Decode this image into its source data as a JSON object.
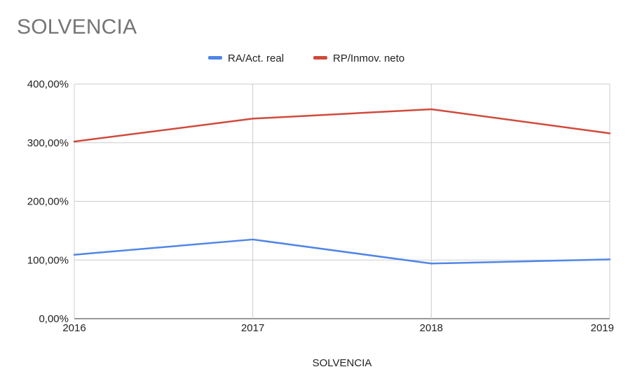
{
  "chart_data": {
    "type": "line",
    "title": "SOLVENCIA",
    "xlabel": "SOLVENCIA",
    "ylabel": "",
    "categories": [
      "2016",
      "2017",
      "2018",
      "2019"
    ],
    "y_ticks": [
      "0,00%",
      "100,00%",
      "200,00%",
      "300,00%",
      "400,00%"
    ],
    "ylim": [
      0,
      400
    ],
    "grid": true,
    "legend_position": "top",
    "series": [
      {
        "name": "RA/Act. real",
        "color": "#5086e6",
        "values": [
          109,
          135,
          94,
          101
        ]
      },
      {
        "name": "RP/Inmov. neto",
        "color": "#d04a3c",
        "values": [
          302,
          341,
          357,
          316
        ]
      }
    ]
  }
}
